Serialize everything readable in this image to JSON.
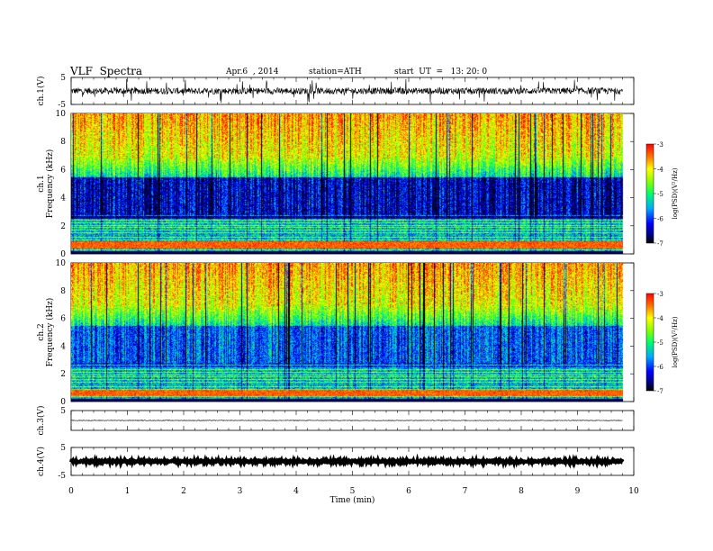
{
  "header": {
    "title": "VLF  Spectra",
    "date": "Apr.6  , 2014",
    "station": "station=ATH",
    "start": "start  UT  =   13: 20: 0"
  },
  "chart_data": [
    {
      "type": "line",
      "name": "waveform-ch1",
      "ylabel": "ch.1(V)",
      "ylim": [
        -5,
        5
      ],
      "yticks": [
        "5",
        "-5"
      ],
      "xlim": [
        0,
        10
      ],
      "description_of_values": "noisy waveform around ~0 V with spikes up to about ±5 V",
      "baseline": 0,
      "noise_amplitude": 1.2,
      "spike_amplitude": 4.5
    },
    {
      "type": "heatmap",
      "name": "spectrogram-ch1",
      "ylabel": "ch.1\nFrequency  (kHz)",
      "ylim": [
        0,
        10
      ],
      "yticks": [
        "0",
        "2",
        "4",
        "6",
        "8",
        "10"
      ],
      "xlim": [
        0,
        9.8
      ],
      "colorbar": {
        "label": "log(PSD)(V²/Hz)",
        "range": [
          -7,
          -3
        ],
        "ticks": [
          "-3",
          "-4",
          "-5",
          "-6",
          "-7"
        ]
      }
    },
    {
      "type": "heatmap",
      "name": "spectrogram-ch2",
      "ylabel": "ch.2\nFrequency  (kHz)",
      "ylim": [
        0,
        10
      ],
      "yticks": [
        "0",
        "2",
        "4",
        "6",
        "8",
        "10"
      ],
      "xlim": [
        0,
        9.8
      ],
      "colorbar": {
        "label": "log(PSD)(V²/Hz)",
        "range": [
          -7,
          -3
        ],
        "ticks": [
          "-3",
          "-4",
          "-5",
          "-6",
          "-7"
        ]
      }
    },
    {
      "type": "line",
      "name": "waveform-ch3",
      "ylabel": "ch.3(V)",
      "ylim": [
        -5,
        5
      ],
      "yticks": [
        "5"
      ],
      "xlim": [
        0,
        10
      ],
      "baseline": 0,
      "noise_amplitude": 0.15
    },
    {
      "type": "line",
      "name": "waveform-ch4",
      "ylabel": "ch.4(V)",
      "ylim": [
        -5,
        5
      ],
      "yticks": [
        "5",
        "-5"
      ],
      "xlim": [
        0,
        10
      ],
      "baseline": 0,
      "noise_amplitude": 0.35,
      "xlabel": "Time  (min)",
      "xticks": [
        "0",
        "1",
        "2",
        "3",
        "4",
        "5",
        "6",
        "7",
        "8",
        "9",
        "10"
      ]
    }
  ]
}
